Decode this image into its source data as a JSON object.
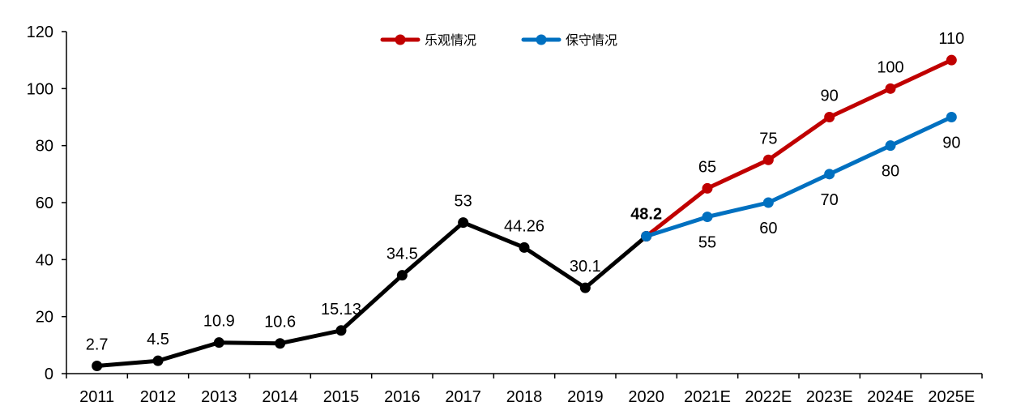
{
  "chart_data": {
    "type": "line",
    "categories": [
      "2011",
      "2012",
      "2013",
      "2014",
      "2015",
      "2016",
      "2017",
      "2018",
      "2019",
      "2020",
      "2021E",
      "2022E",
      "2023E",
      "2024E",
      "2025E"
    ],
    "ylim": [
      0,
      120
    ],
    "yticks": [
      "0",
      "20",
      "40",
      "60",
      "80",
      "100",
      "120"
    ],
    "grid": false,
    "legend_position": "top",
    "series": [
      {
        "key": "historical",
        "color": "#000000",
        "values": [
          2.7,
          4.5,
          10.9,
          10.6,
          15.13,
          34.5,
          53,
          44.26,
          30.1,
          48.2,
          null,
          null,
          null,
          null,
          null
        ],
        "labels": [
          "2.7",
          "4.5",
          "10.9",
          "10.6",
          "15.13",
          "34.5",
          "53",
          "44.26",
          "30.1",
          "48.2",
          "",
          "",
          "",
          "",
          ""
        ]
      },
      {
        "key": "optimistic",
        "name": "乐观情况",
        "color": "#C00000",
        "values": [
          null,
          null,
          null,
          null,
          null,
          null,
          null,
          null,
          null,
          48.2,
          65,
          75,
          90,
          100,
          110
        ],
        "labels": [
          "",
          "",
          "",
          "",
          "",
          "",
          "",
          "",
          "",
          "",
          "65",
          "75",
          "90",
          "100",
          "110"
        ]
      },
      {
        "key": "conservative",
        "name": "保守情况",
        "color": "#0070C0",
        "values": [
          null,
          null,
          null,
          null,
          null,
          null,
          null,
          null,
          null,
          48.2,
          55,
          60,
          70,
          80,
          90
        ],
        "labels": [
          "",
          "",
          "",
          "",
          "",
          "",
          "",
          "",
          "",
          "",
          "55",
          "60",
          "70",
          "80",
          "90"
        ]
      }
    ]
  }
}
